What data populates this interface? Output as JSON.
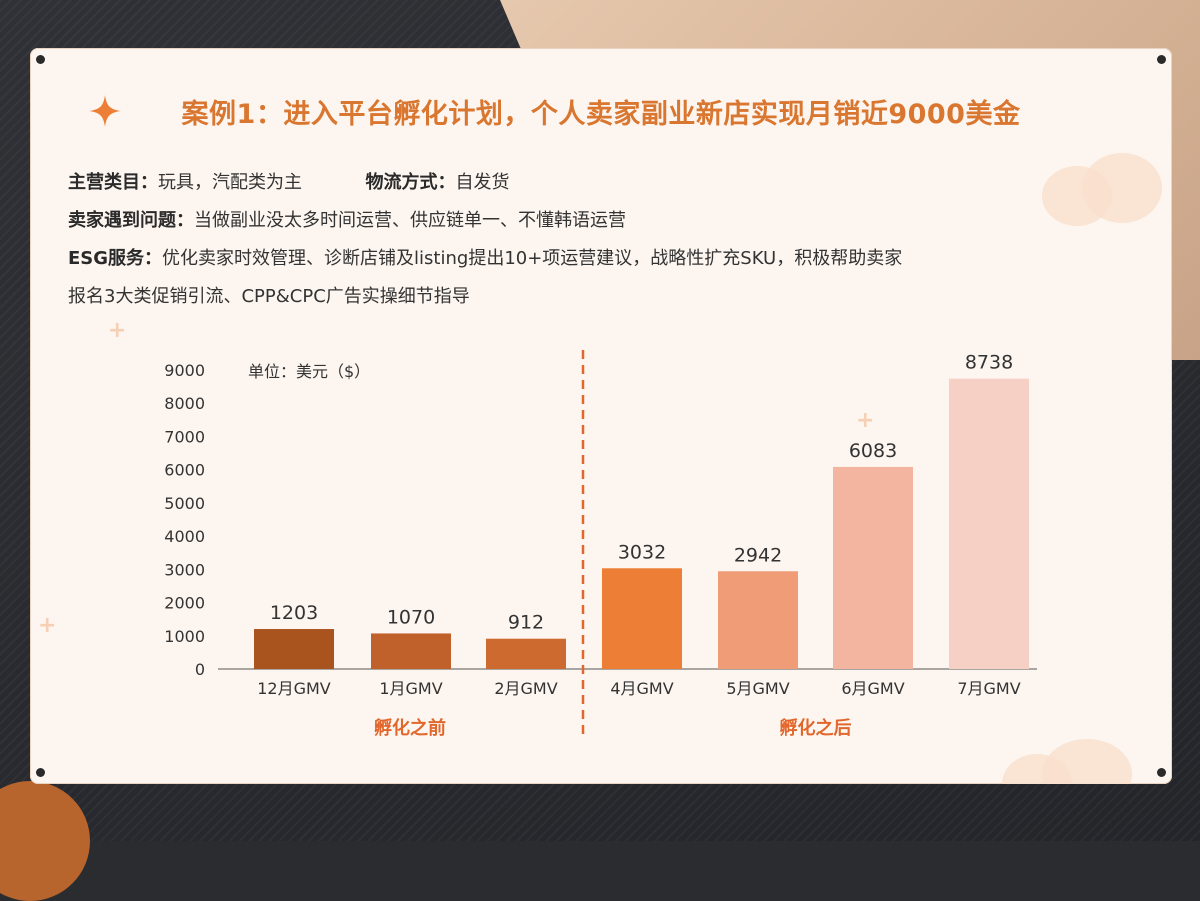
{
  "title": "案例1：进入平台孵化计划，个人卖家副业新店实现月销近9000美金",
  "info": {
    "category_label": "主营类目：",
    "category_value": "玩具，汽配类为主",
    "logistics_label": "物流方式：",
    "logistics_value": "自发货",
    "problem_label": "卖家遇到问题：",
    "problem_value": "当做副业没太多时间运营、供应链单一、不懂韩语运营",
    "esg_label": "ESG服务：",
    "esg_value_line1": "优化卖家时效管理、诊断店铺及listing提出10+项运营建议，战略性扩充SKU，积极帮助卖家",
    "esg_value_line2": "报名3大类促销引流、CPP&CPC广告实操细节指导"
  },
  "chart_data": {
    "type": "bar",
    "unit_label": "单位：美元（$）",
    "categories": [
      "12月GMV",
      "1月GMV",
      "2月GMV",
      "4月GMV",
      "5月GMV",
      "6月GMV",
      "7月GMV"
    ],
    "values": [
      1203,
      1070,
      912,
      3032,
      2942,
      6083,
      8738
    ],
    "colors": [
      "#a9531f",
      "#c0602a",
      "#cd6a30",
      "#ec7f35",
      "#ef9c77",
      "#f3b5a0",
      "#f6d0c5"
    ],
    "yticks": [
      0,
      1000,
      2000,
      3000,
      4000,
      5000,
      6000,
      7000,
      8000,
      9000
    ],
    "ylim": [
      0,
      9000
    ],
    "groups": [
      {
        "label": "孵化之前",
        "categories": [
          "12月GMV",
          "1月GMV",
          "2月GMV"
        ]
      },
      {
        "label": "孵化之后",
        "categories": [
          "4月GMV",
          "5月GMV",
          "6月GMV",
          "7月GMV"
        ]
      }
    ],
    "divider_color": "#e2672c",
    "group_label_color": "#e2672c"
  }
}
